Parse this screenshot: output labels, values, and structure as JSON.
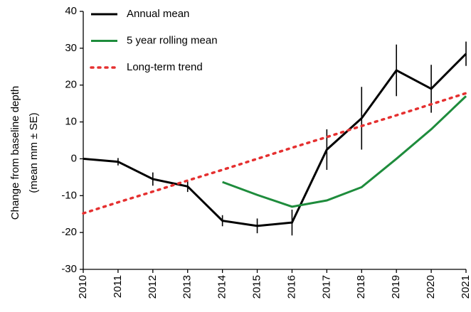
{
  "chart_data": {
    "type": "line",
    "y_label": [
      "Change from baseline depth",
      "(mean mm ± SE)"
    ],
    "x": [
      2010,
      2011,
      2012,
      2013,
      2014,
      2015,
      2016,
      2017,
      2018,
      2019,
      2020,
      2021
    ],
    "xlim": [
      2010,
      2021
    ],
    "xticks": [
      2010,
      2011,
      2012,
      2013,
      2014,
      2015,
      2016,
      2017,
      2018,
      2019,
      2020,
      2021
    ],
    "ylim": [
      -30,
      40
    ],
    "yticks": [
      -30,
      -20,
      -10,
      0,
      10,
      20,
      30,
      40
    ],
    "legend": "top-left",
    "series": [
      {
        "name": "Annual mean",
        "color": "#000000",
        "style": "solid",
        "values": [
          0,
          -0.8,
          -5.5,
          -7.5,
          -16.8,
          -18.2,
          -17.3,
          2.5,
          11,
          24,
          19,
          28.5
        ],
        "errors": [
          0,
          1,
          1.8,
          1.5,
          1.5,
          2,
          3.5,
          5.5,
          8.5,
          7,
          6.5,
          3.3
        ]
      },
      {
        "name": "5 year rolling mean",
        "color": "#1e8c3c",
        "style": "solid",
        "values": [
          null,
          null,
          null,
          null,
          -6.3,
          -9.8,
          -13,
          -11.3,
          -7.7,
          0,
          8,
          17
        ]
      },
      {
        "name": "Long-term trend",
        "color": "#e53030",
        "style": "dotted",
        "values": [
          -14.8,
          -11.8,
          -8.9,
          -5.9,
          -3.0,
          0.0,
          3.0,
          5.9,
          8.9,
          11.8,
          14.8,
          17.8
        ]
      }
    ]
  }
}
